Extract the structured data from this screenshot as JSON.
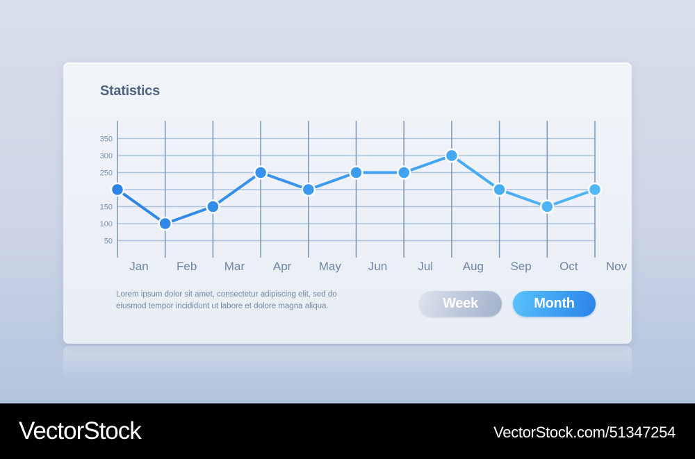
{
  "card": {
    "title": "Statistics",
    "description": "Lorem ipsum dolor sit amet, consectetur adipiscing elit, sed do eiusmod tempor incididunt ut labore et dolore magna aliqua."
  },
  "buttons": {
    "week_label": "Week",
    "month_label": "Month"
  },
  "footer": {
    "brand": "VectorStock",
    "url": "VectorStock.com/51347254"
  },
  "chart_data": {
    "type": "line",
    "title": "Statistics",
    "xlabel": "",
    "ylabel": "",
    "categories": [
      "Jan",
      "Feb",
      "Mar",
      "Apr",
      "May",
      "Jun",
      "Jul",
      "Aug",
      "Sep",
      "Oct",
      "Nov"
    ],
    "values": [
      200,
      100,
      150,
      250,
      200,
      250,
      250,
      300,
      200,
      150,
      200
    ],
    "y_ticks": [
      50,
      100,
      150,
      250,
      300,
      350
    ],
    "ylim": [
      0,
      350
    ],
    "grid": true,
    "line_color": "#2d82e6",
    "line_color_end": "#4fb8f5"
  }
}
